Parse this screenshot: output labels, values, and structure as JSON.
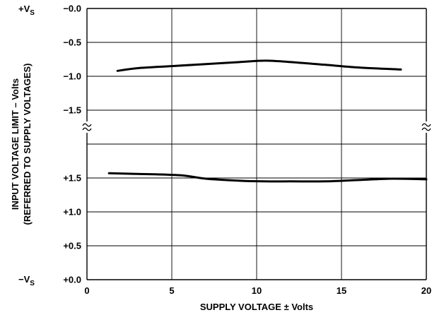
{
  "chart_data": {
    "type": "line",
    "xlabel": "SUPPLY VOLTAGE ± Volts",
    "ylabel_line1": "INPUT VOLTAGE LIMIT – Volts",
    "ylabel_line2": "(REFERRED TO SUPPLY VOLTAGES)",
    "xlim": [
      0,
      20
    ],
    "x_ticks": [
      "0",
      "5",
      "10",
      "15",
      "20"
    ],
    "grid": true,
    "upper_panel": {
      "ylim": [
        -1.75,
        0.0
      ],
      "y_ticks": [
        {
          "value": 0.0,
          "label": "−0.0"
        },
        {
          "value": -0.5,
          "label": "−0.5"
        },
        {
          "value": -1.0,
          "label": "−1.0"
        },
        {
          "value": -1.5,
          "label": "−1.5"
        }
      ],
      "rail_label": {
        "main": "+V",
        "sub": "S"
      },
      "series": [
        {
          "x": [
            1.8,
            3,
            5,
            7,
            9,
            10.5,
            12,
            14,
            16,
            18.5
          ],
          "values": [
            -0.92,
            -0.88,
            -0.85,
            -0.82,
            -0.79,
            -0.77,
            -0.79,
            -0.83,
            -0.87,
            -0.9
          ]
        }
      ]
    },
    "lower_panel": {
      "ylim": [
        0.0,
        2.0
      ],
      "y_ticks": [
        {
          "value": 1.5,
          "label": "+1.5"
        },
        {
          "value": 1.0,
          "label": "+1.0"
        },
        {
          "value": 0.5,
          "label": "+0.5"
        },
        {
          "value": 0.0,
          "label": "+0.0"
        }
      ],
      "rail_label": {
        "main": "−V",
        "sub": "S"
      },
      "series": [
        {
          "x": [
            1.3,
            3,
            5.5,
            7,
            9,
            10.5,
            12,
            14,
            16,
            18,
            20
          ],
          "values": [
            1.57,
            1.56,
            1.54,
            1.49,
            1.46,
            1.45,
            1.45,
            1.45,
            1.47,
            1.49,
            1.48
          ]
        }
      ]
    }
  }
}
